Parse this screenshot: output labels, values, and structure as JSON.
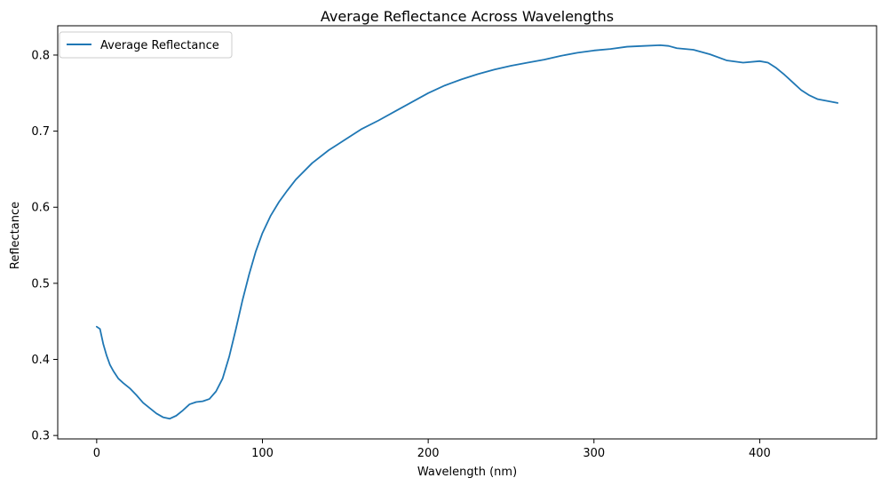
{
  "chart_data": {
    "type": "line",
    "title": "Average Reflectance Across Wavelengths",
    "xlabel": "Wavelength (nm)",
    "ylabel": "Reflectance",
    "xlim": [
      -23.5,
      470.5
    ],
    "ylim": [
      0.2955,
      0.8385
    ],
    "xticks": [
      0,
      100,
      200,
      300,
      400
    ],
    "yticks": [
      0.3,
      0.4,
      0.5,
      0.6,
      0.7,
      0.8
    ],
    "xtick_labels": [
      "0",
      "100",
      "200",
      "300",
      "400"
    ],
    "ytick_labels": [
      "0.3",
      "0.4",
      "0.5",
      "0.6",
      "0.7",
      "0.8"
    ],
    "grid": false,
    "legend": {
      "placement": "upper-left"
    },
    "colors": {
      "series": "#1f77b4"
    },
    "series": [
      {
        "name": "Average Reflectance",
        "x": [
          0,
          2,
          4,
          6,
          8,
          10,
          13,
          16,
          20,
          24,
          28,
          32,
          36,
          40,
          44,
          48,
          52,
          56,
          60,
          64,
          68,
          72,
          76,
          80,
          84,
          88,
          92,
          96,
          100,
          105,
          110,
          115,
          120,
          130,
          140,
          150,
          160,
          170,
          180,
          190,
          200,
          210,
          220,
          230,
          240,
          250,
          260,
          270,
          280,
          290,
          300,
          310,
          320,
          330,
          340,
          345,
          350,
          360,
          370,
          380,
          390,
          400,
          405,
          410,
          415,
          420,
          425,
          430,
          435,
          440,
          447
        ],
        "y": [
          0.443,
          0.44,
          0.42,
          0.405,
          0.393,
          0.385,
          0.375,
          0.369,
          0.362,
          0.353,
          0.343,
          0.336,
          0.329,
          0.324,
          0.322,
          0.326,
          0.333,
          0.341,
          0.344,
          0.345,
          0.348,
          0.358,
          0.375,
          0.404,
          0.44,
          0.478,
          0.512,
          0.542,
          0.566,
          0.589,
          0.607,
          0.622,
          0.636,
          0.658,
          0.675,
          0.689,
          0.703,
          0.714,
          0.726,
          0.738,
          0.75,
          0.76,
          0.768,
          0.775,
          0.781,
          0.786,
          0.79,
          0.794,
          0.799,
          0.803,
          0.806,
          0.808,
          0.811,
          0.812,
          0.813,
          0.812,
          0.809,
          0.807,
          0.801,
          0.793,
          0.79,
          0.792,
          0.79,
          0.783,
          0.774,
          0.764,
          0.754,
          0.747,
          0.742,
          0.74,
          0.737
        ]
      }
    ]
  }
}
